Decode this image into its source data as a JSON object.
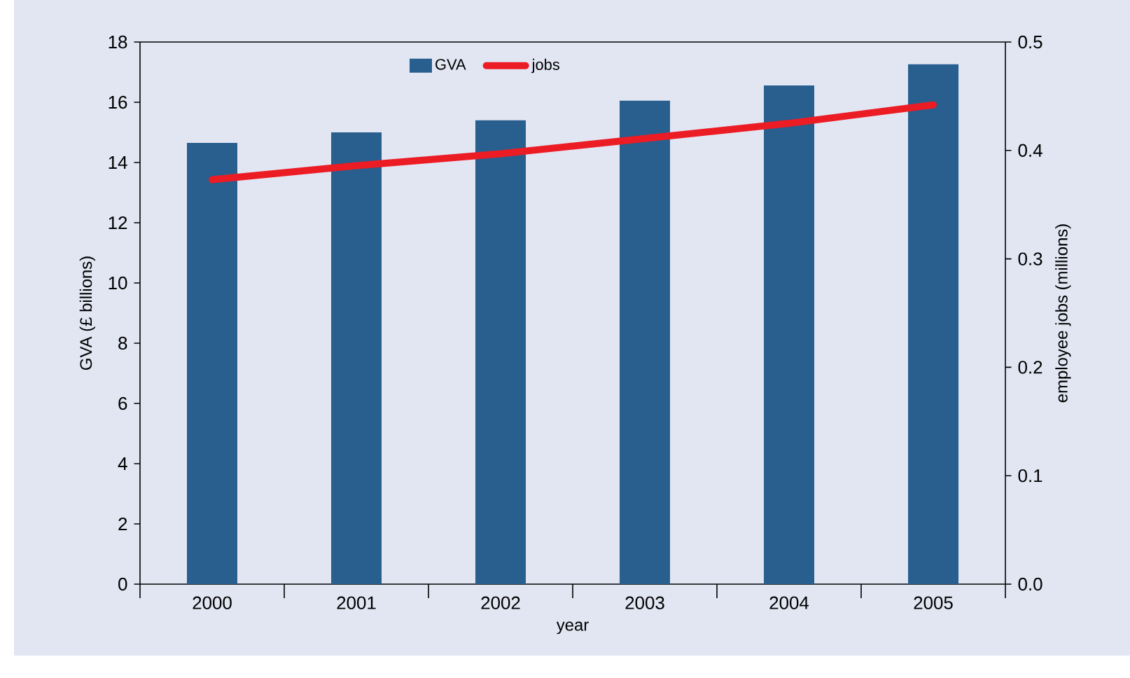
{
  "chart_data": {
    "type": "bar",
    "xlabel": "year",
    "ylabel": "GVA (£ billions)",
    "y2label": "employee jobs (millions)",
    "categories": [
      "2000",
      "2001",
      "2002",
      "2003",
      "2004",
      "2005"
    ],
    "series": [
      {
        "name": "GVA",
        "color": "#285f8f",
        "values": [
          14.65,
          15.0,
          15.4,
          16.05,
          16.56,
          17.26
        ]
      },
      {
        "name": "jobs",
        "type": "line",
        "axis": "y2",
        "color": "#ec1c24",
        "values": [
          0.373,
          0.386,
          0.397,
          0.411,
          0.425,
          0.442
        ]
      }
    ],
    "ylim": [
      0,
      18
    ],
    "yticks": [
      0,
      2,
      4,
      6,
      8,
      10,
      12,
      14,
      16,
      18
    ],
    "y2lim": [
      0,
      0.5
    ],
    "y2ticks": [
      {
        "value": 0,
        "label": "0.0"
      },
      0.1,
      0.2,
      0.3,
      0.4,
      0.5
    ],
    "legend": "top",
    "grid": false,
    "marker": "none",
    "line_style": "solid"
  }
}
